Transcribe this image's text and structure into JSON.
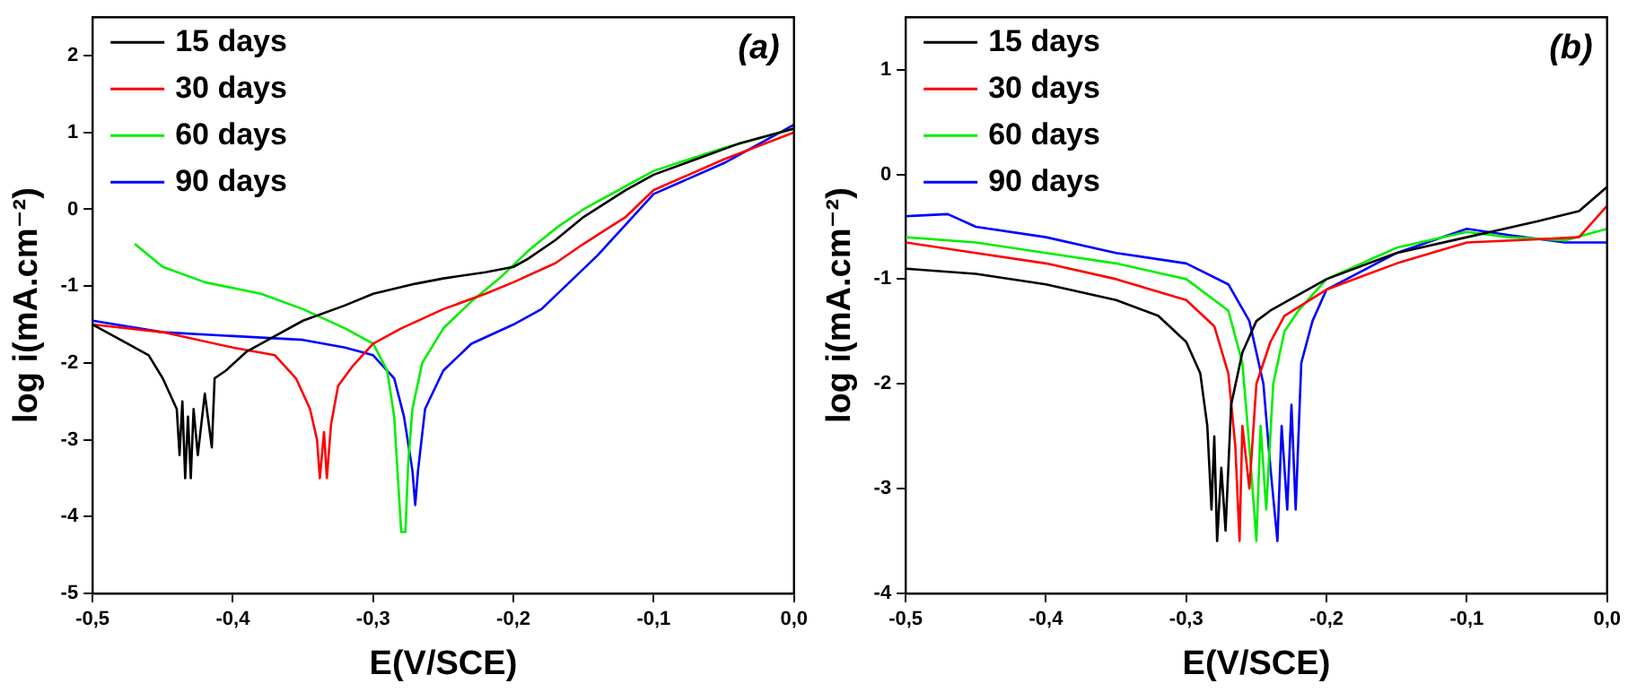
{
  "chart_data": [
    {
      "type": "line",
      "xlabel": "E(V/SCE)",
      "ylabel": "log i(mA.cm⁻²)",
      "annotations": [
        "(a)"
      ],
      "legend": "top left",
      "grid": false,
      "marker": "none",
      "line_style": "solid",
      "xlim": [
        -0.5,
        0
      ],
      "xticks": [
        {
          "value": -0.5,
          "label": "-0,5"
        },
        {
          "value": -0.4,
          "label": "-0,4"
        },
        {
          "value": -0.3,
          "label": "-0,3"
        },
        {
          "value": -0.2,
          "label": "-0,2"
        },
        {
          "value": -0.1,
          "label": "-0,1"
        },
        {
          "value": 0,
          "label": "0,0"
        }
      ],
      "ylim": [
        -5,
        2.5
      ],
      "yticks": [
        -5,
        -4,
        -3,
        -2,
        -1,
        0,
        1,
        2
      ],
      "series": [
        {
          "name": "15 days",
          "color": "#000000",
          "x": [
            -0.5,
            -0.48,
            -0.46,
            -0.45,
            -0.44,
            -0.438,
            -0.436,
            -0.434,
            -0.432,
            -0.43,
            -0.428,
            -0.425,
            -0.42,
            -0.415,
            -0.413,
            -0.405,
            -0.39,
            -0.37,
            -0.35,
            -0.32,
            -0.3,
            -0.27,
            -0.25,
            -0.22,
            -0.2,
            -0.19,
            -0.17,
            -0.15,
            -0.12,
            -0.1,
            -0.07,
            -0.04,
            0
          ],
          "values": [
            -1.5,
            -1.7,
            -1.9,
            -2.2,
            -2.6,
            -3.2,
            -2.5,
            -3.5,
            -2.7,
            -3.5,
            -2.6,
            -3.2,
            -2.4,
            -3.1,
            -2.2,
            -2.1,
            -1.85,
            -1.65,
            -1.45,
            -1.25,
            -1.1,
            -0.97,
            -0.9,
            -0.82,
            -0.75,
            -0.65,
            -0.4,
            -0.1,
            0.25,
            0.45,
            0.65,
            0.85,
            1.05
          ]
        },
        {
          "name": "30 days",
          "color": "#ff0000",
          "x": [
            -0.5,
            -0.45,
            -0.4,
            -0.37,
            -0.355,
            -0.345,
            -0.34,
            -0.338,
            -0.335,
            -0.333,
            -0.33,
            -0.325,
            -0.315,
            -0.3,
            -0.28,
            -0.25,
            -0.22,
            -0.2,
            -0.17,
            -0.15,
            -0.12,
            -0.1,
            -0.05,
            0
          ],
          "values": [
            -1.5,
            -1.6,
            -1.8,
            -1.9,
            -2.2,
            -2.6,
            -3.0,
            -3.5,
            -2.9,
            -3.5,
            -2.8,
            -2.3,
            -2.05,
            -1.75,
            -1.55,
            -1.3,
            -1.1,
            -0.95,
            -0.7,
            -0.45,
            -0.1,
            0.25,
            0.65,
            1.0
          ]
        },
        {
          "name": "60 days",
          "color": "#00ee00",
          "x": [
            -0.47,
            -0.45,
            -0.42,
            -0.38,
            -0.35,
            -0.32,
            -0.3,
            -0.29,
            -0.285,
            -0.282,
            -0.28,
            -0.277,
            -0.275,
            -0.272,
            -0.265,
            -0.25,
            -0.23,
            -0.21,
            -0.19,
            -0.17,
            -0.15,
            -0.12,
            -0.1,
            -0.05,
            0
          ],
          "values": [
            -0.45,
            -0.75,
            -0.95,
            -1.1,
            -1.3,
            -1.55,
            -1.75,
            -2.1,
            -2.7,
            -3.6,
            -4.2,
            -4.2,
            -3.3,
            -2.6,
            -2.0,
            -1.55,
            -1.2,
            -0.9,
            -0.55,
            -0.25,
            0.0,
            0.3,
            0.5,
            0.8,
            1.05
          ]
        },
        {
          "name": "90 days",
          "color": "#0000ff",
          "x": [
            -0.5,
            -0.45,
            -0.4,
            -0.35,
            -0.32,
            -0.3,
            -0.285,
            -0.278,
            -0.272,
            -0.27,
            -0.268,
            -0.263,
            -0.25,
            -0.23,
            -0.2,
            -0.18,
            -0.16,
            -0.14,
            -0.12,
            -0.1,
            -0.05,
            0
          ],
          "values": [
            -1.45,
            -1.6,
            -1.65,
            -1.7,
            -1.8,
            -1.9,
            -2.2,
            -2.7,
            -3.4,
            -3.85,
            -3.4,
            -2.6,
            -2.1,
            -1.75,
            -1.5,
            -1.3,
            -0.95,
            -0.6,
            -0.2,
            0.2,
            0.6,
            1.1
          ]
        }
      ]
    },
    {
      "type": "line",
      "xlabel": "E(V/SCE)",
      "ylabel": "log i(mA.cm⁻²)",
      "annotations": [
        "(b)"
      ],
      "legend": "top left",
      "grid": false,
      "marker": "none",
      "line_style": "solid",
      "xlim": [
        -0.5,
        0
      ],
      "xticks": [
        {
          "value": -0.5,
          "label": "-0,5"
        },
        {
          "value": -0.4,
          "label": "-0,4"
        },
        {
          "value": -0.3,
          "label": "-0,3"
        },
        {
          "value": -0.2,
          "label": "-0,2"
        },
        {
          "value": -0.1,
          "label": "-0,1"
        },
        {
          "value": 0,
          "label": "0,0"
        }
      ],
      "ylim": [
        -4,
        1.5
      ],
      "yticks": [
        -4,
        -3,
        -2,
        -1,
        0,
        1
      ],
      "series": [
        {
          "name": "15 days",
          "color": "#000000",
          "x": [
            -0.5,
            -0.45,
            -0.4,
            -0.35,
            -0.32,
            -0.3,
            -0.29,
            -0.285,
            -0.282,
            -0.28,
            -0.278,
            -0.275,
            -0.272,
            -0.268,
            -0.26,
            -0.25,
            -0.24,
            -0.22,
            -0.2,
            -0.15,
            -0.1,
            -0.05,
            -0.02,
            0
          ],
          "values": [
            -0.9,
            -0.95,
            -1.05,
            -1.2,
            -1.35,
            -1.6,
            -1.9,
            -2.4,
            -3.2,
            -2.5,
            -3.5,
            -2.8,
            -3.4,
            -2.2,
            -1.7,
            -1.4,
            -1.3,
            -1.15,
            -1.0,
            -0.75,
            -0.6,
            -0.45,
            -0.35,
            -0.12
          ]
        },
        {
          "name": "30 days",
          "color": "#ff0000",
          "x": [
            -0.5,
            -0.45,
            -0.4,
            -0.35,
            -0.3,
            -0.28,
            -0.27,
            -0.265,
            -0.262,
            -0.26,
            -0.255,
            -0.25,
            -0.24,
            -0.23,
            -0.2,
            -0.15,
            -0.1,
            -0.05,
            -0.02,
            0
          ],
          "values": [
            -0.65,
            -0.75,
            -0.85,
            -1.0,
            -1.2,
            -1.45,
            -1.9,
            -2.6,
            -3.5,
            -2.4,
            -3.0,
            -2.0,
            -1.6,
            -1.35,
            -1.1,
            -0.85,
            -0.65,
            -0.62,
            -0.6,
            -0.3
          ]
        },
        {
          "name": "60 days",
          "color": "#00ee00",
          "x": [
            -0.5,
            -0.45,
            -0.4,
            -0.35,
            -0.3,
            -0.27,
            -0.26,
            -0.255,
            -0.25,
            -0.247,
            -0.243,
            -0.238,
            -0.23,
            -0.22,
            -0.2,
            -0.15,
            -0.1,
            -0.07,
            -0.03,
            0
          ],
          "values": [
            -0.6,
            -0.65,
            -0.75,
            -0.85,
            -1.0,
            -1.3,
            -1.8,
            -2.6,
            -3.5,
            -2.4,
            -3.2,
            -2.0,
            -1.5,
            -1.3,
            -1.0,
            -0.7,
            -0.55,
            -0.6,
            -0.63,
            -0.52
          ]
        },
        {
          "name": "90 days",
          "color": "#0000ff",
          "x": [
            -0.5,
            -0.47,
            -0.45,
            -0.4,
            -0.35,
            -0.3,
            -0.27,
            -0.255,
            -0.245,
            -0.24,
            -0.235,
            -0.232,
            -0.228,
            -0.225,
            -0.222,
            -0.218,
            -0.21,
            -0.2,
            -0.15,
            -0.1,
            -0.07,
            -0.03,
            0
          ],
          "values": [
            -0.4,
            -0.38,
            -0.5,
            -0.6,
            -0.75,
            -0.85,
            -1.05,
            -1.4,
            -2.0,
            -2.8,
            -3.5,
            -2.4,
            -3.2,
            -2.2,
            -3.2,
            -1.8,
            -1.4,
            -1.1,
            -0.75,
            -0.52,
            -0.58,
            -0.65,
            -0.65
          ]
        }
      ]
    }
  ]
}
